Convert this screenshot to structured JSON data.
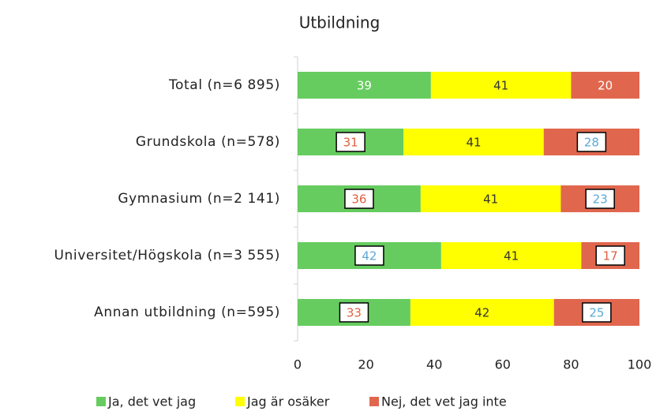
{
  "chart_data": {
    "type": "stacked_bar_horizontal",
    "title": "Utbildning",
    "categories": [
      "Total (n=6 895)",
      "Grundskola (n=578)",
      "Gymnasium (n=2 141)",
      "Universitet/Högskola (n=3 555)",
      "Annan utbildning (n=595)"
    ],
    "series": [
      {
        "name": "Ja, det vet jag",
        "color": "#66cc5f",
        "values": [
          39,
          31,
          36,
          42,
          33
        ],
        "label_colors": [
          "#ffffff",
          "#e0603f",
          "#e0603f",
          "#5aa9d6",
          "#e0603f"
        ],
        "boxed": [
          false,
          true,
          true,
          true,
          true
        ]
      },
      {
        "name": "Jag är osäker",
        "color": "#ffff00",
        "values": [
          41,
          41,
          41,
          41,
          42
        ],
        "label_colors": [
          "#333333",
          "#333333",
          "#333333",
          "#333333",
          "#333333"
        ],
        "boxed": [
          false,
          false,
          false,
          false,
          false
        ]
      },
      {
        "name": "Nej, det vet jag inte",
        "color": "#e0674e",
        "values": [
          20,
          28,
          23,
          17,
          25
        ],
        "label_colors": [
          "#ffffff",
          "#5aa9d6",
          "#5aa9d6",
          "#e0603f",
          "#5aa9d6"
        ],
        "boxed": [
          false,
          true,
          true,
          true,
          true
        ]
      }
    ],
    "xlim": [
      0,
      100
    ],
    "xticks": [
      0,
      20,
      40,
      60,
      80,
      100
    ],
    "legend": "bottom"
  }
}
